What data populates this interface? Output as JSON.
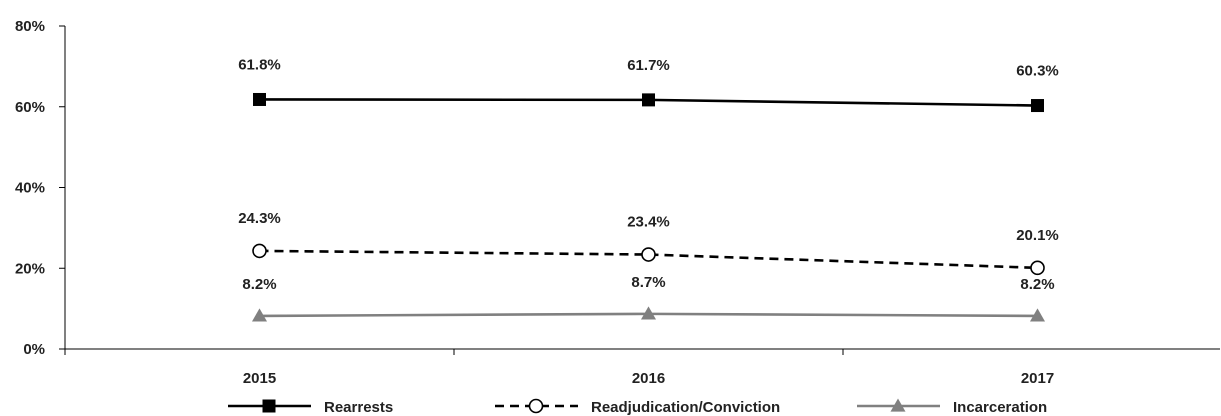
{
  "chart_data": {
    "type": "line",
    "title": "",
    "xlabel": "",
    "ylabel": "",
    "categories": [
      "2015",
      "2016",
      "2017"
    ],
    "ylim": [
      0,
      80
    ],
    "yticks": [
      0,
      20,
      40,
      60,
      80
    ],
    "ytick_labels": [
      "0%",
      "20%",
      "40%",
      "60%",
      "80%"
    ],
    "grid": false,
    "legend_position": "bottom",
    "series": [
      {
        "name": "Rearrests",
        "values": [
          61.8,
          61.7,
          60.3
        ],
        "labels": [
          "61.8%",
          "61.7%",
          "60.3%"
        ],
        "color": "#000000",
        "line_style": "solid",
        "marker": "square-filled"
      },
      {
        "name": "Readjudication/Conviction",
        "values": [
          24.3,
          23.4,
          20.1
        ],
        "labels": [
          "24.3%",
          "23.4%",
          "20.1%"
        ],
        "color": "#000000",
        "line_style": "dashed",
        "marker": "circle-open"
      },
      {
        "name": "Incarceration",
        "values": [
          8.2,
          8.7,
          8.2
        ],
        "labels": [
          "8.2%",
          "8.7%",
          "8.2%"
        ],
        "color": "#808080",
        "line_style": "solid",
        "marker": "triangle-filled"
      }
    ]
  }
}
